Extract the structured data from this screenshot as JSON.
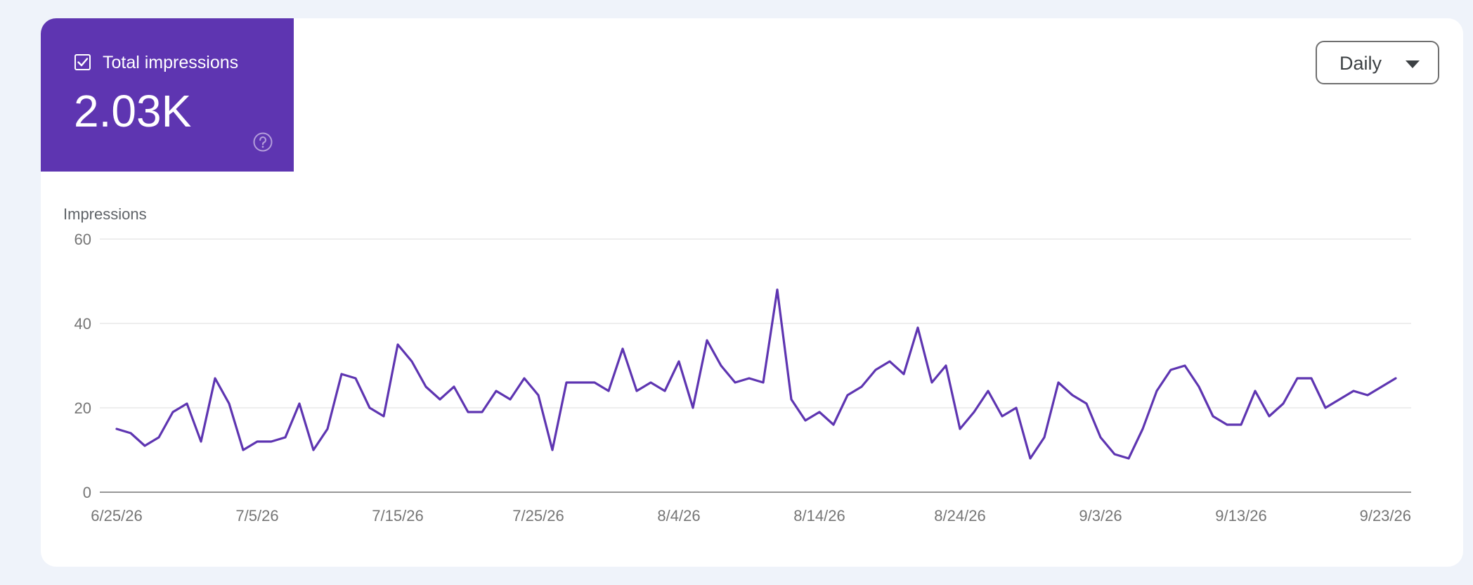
{
  "metric": {
    "label": "Total impressions",
    "value": "2.03K",
    "checked": true,
    "color": "#5e35b1"
  },
  "period_select": {
    "label": "Daily"
  },
  "icons": {
    "checkbox": "checkbox-checked-icon",
    "help": "help-circle-icon",
    "dropdown": "chevron-down-icon"
  },
  "chart_data": {
    "type": "line",
    "ylabel": "Impressions",
    "xlabel": "",
    "ylim": [
      0,
      60
    ],
    "yticks": [
      "0",
      "20",
      "40",
      "60"
    ],
    "xticks": [
      "6/25/26",
      "7/5/26",
      "7/15/26",
      "7/25/26",
      "8/4/26",
      "8/14/26",
      "8/24/26",
      "9/3/26",
      "9/13/26",
      "9/23/26"
    ],
    "x_start": "6/25/26",
    "x_end": "9/23/26",
    "grid": true,
    "series": [
      {
        "color": "#5e35b1",
        "values": [
          15,
          14,
          11,
          13,
          19,
          21,
          12,
          27,
          21,
          10,
          12,
          12,
          13,
          21,
          10,
          15,
          28,
          27,
          20,
          18,
          35,
          31,
          25,
          22,
          25,
          19,
          19,
          24,
          22,
          27,
          23,
          10,
          26,
          26,
          26,
          24,
          34,
          24,
          26,
          24,
          31,
          20,
          36,
          30,
          26,
          27,
          26,
          48,
          22,
          17,
          19,
          16,
          23,
          25,
          29,
          31,
          28,
          39,
          26,
          30,
          15,
          19,
          24,
          18,
          20,
          8,
          13,
          26,
          23,
          21,
          13,
          9,
          8,
          15,
          24,
          29,
          30,
          25,
          18,
          16,
          16,
          24,
          18,
          21,
          27,
          27,
          20,
          22,
          24,
          23,
          25,
          27
        ]
      }
    ]
  }
}
